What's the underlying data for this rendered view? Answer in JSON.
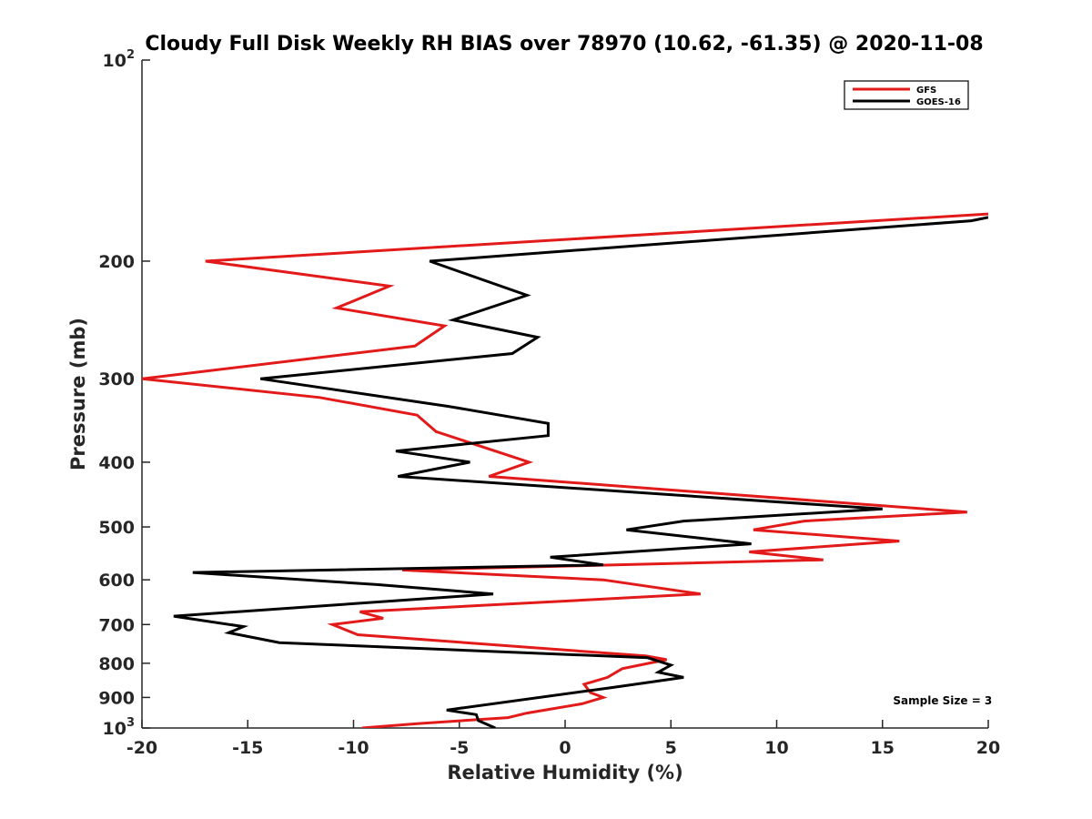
{
  "chart_data": {
    "type": "line",
    "title": "Cloudy Full Disk Weekly RH BIAS over 78970 (10.62, -61.35) @ 2020-11-08",
    "xlabel": "Relative Humidity (%)",
    "ylabel": "Pressure (mb)",
    "xlim": [
      -20,
      20
    ],
    "ylim": [
      100,
      1000
    ],
    "y_scale": "log",
    "y_reversed": true,
    "grid": false,
    "legend_position": "top-right",
    "x_ticks": [
      "-20",
      "-15",
      "-10",
      "-5",
      "0",
      "5",
      "10",
      "15",
      "20"
    ],
    "y_ticks": [
      {
        "value": 100,
        "base": "10",
        "exp": "2"
      },
      {
        "value": 200,
        "label": "200"
      },
      {
        "value": 300,
        "label": "300"
      },
      {
        "value": 400,
        "label": "400"
      },
      {
        "value": 500,
        "label": "500"
      },
      {
        "value": 600,
        "label": "600"
      },
      {
        "value": 700,
        "label": "700"
      },
      {
        "value": 800,
        "label": "800"
      },
      {
        "value": 900,
        "label": "900"
      },
      {
        "value": 1000,
        "base": "10",
        "exp": "3"
      }
    ],
    "series": [
      {
        "name": "GFS",
        "color": "#e31a1a",
        "points": [
          [
            20.0,
            170
          ],
          [
            -17.0,
            200
          ],
          [
            -8.3,
            218
          ],
          [
            -10.8,
            235
          ],
          [
            -5.7,
            250
          ],
          [
            -7.1,
            268
          ],
          [
            -20.0,
            300
          ],
          [
            -11.6,
            320
          ],
          [
            -7.0,
            340
          ],
          [
            -6.1,
            360
          ],
          [
            -1.7,
            400
          ],
          [
            -3.6,
            420
          ],
          [
            19.0,
            475
          ],
          [
            11.3,
            490
          ],
          [
            8.9,
            505
          ],
          [
            15.8,
            525
          ],
          [
            8.7,
            545
          ],
          [
            12.2,
            560
          ],
          [
            -7.7,
            580
          ],
          [
            1.8,
            600
          ],
          [
            6.4,
            630
          ],
          [
            -9.7,
            670
          ],
          [
            -8.6,
            685
          ],
          [
            -11.0,
            700
          ],
          [
            -9.8,
            725
          ],
          [
            3.8,
            780
          ],
          [
            4.8,
            790
          ],
          [
            2.7,
            815
          ],
          [
            2.0,
            840
          ],
          [
            0.9,
            860
          ],
          [
            1.2,
            885
          ],
          [
            1.8,
            900
          ],
          [
            0.8,
            920
          ],
          [
            -1.8,
            950
          ],
          [
            -2.7,
            965
          ],
          [
            -7.0,
            985
          ],
          [
            -9.6,
            1000
          ]
        ]
      },
      {
        "name": "GOES-16",
        "color": "#000000",
        "points": [
          [
            20.0,
            172
          ],
          [
            19.2,
            174
          ],
          [
            -6.4,
            200
          ],
          [
            -1.8,
            225
          ],
          [
            -5.3,
            245
          ],
          [
            -1.3,
            260
          ],
          [
            -2.5,
            275
          ],
          [
            -14.4,
            300
          ],
          [
            -5.5,
            330
          ],
          [
            -0.8,
            350
          ],
          [
            -0.8,
            365
          ],
          [
            -8.0,
            385
          ],
          [
            -4.5,
            400
          ],
          [
            -7.9,
            420
          ],
          [
            15.0,
            470
          ],
          [
            5.6,
            490
          ],
          [
            2.9,
            505
          ],
          [
            8.8,
            530
          ],
          [
            -0.7,
            555
          ],
          [
            1.8,
            570
          ],
          [
            -17.6,
            585
          ],
          [
            -8.9,
            610
          ],
          [
            -3.4,
            630
          ],
          [
            -18.5,
            680
          ],
          [
            -15.2,
            705
          ],
          [
            -15.9,
            720
          ],
          [
            -13.5,
            745
          ],
          [
            3.9,
            785
          ],
          [
            5.0,
            805
          ],
          [
            4.4,
            825
          ],
          [
            5.6,
            840
          ],
          [
            2.2,
            870
          ],
          [
            -5.6,
            940
          ],
          [
            -4.2,
            955
          ],
          [
            -4.1,
            975
          ],
          [
            -3.3,
            1000
          ]
        ]
      }
    ],
    "annotations": [
      {
        "text": "Sample Size = 3",
        "x": 15.5,
        "y": 910
      }
    ]
  }
}
